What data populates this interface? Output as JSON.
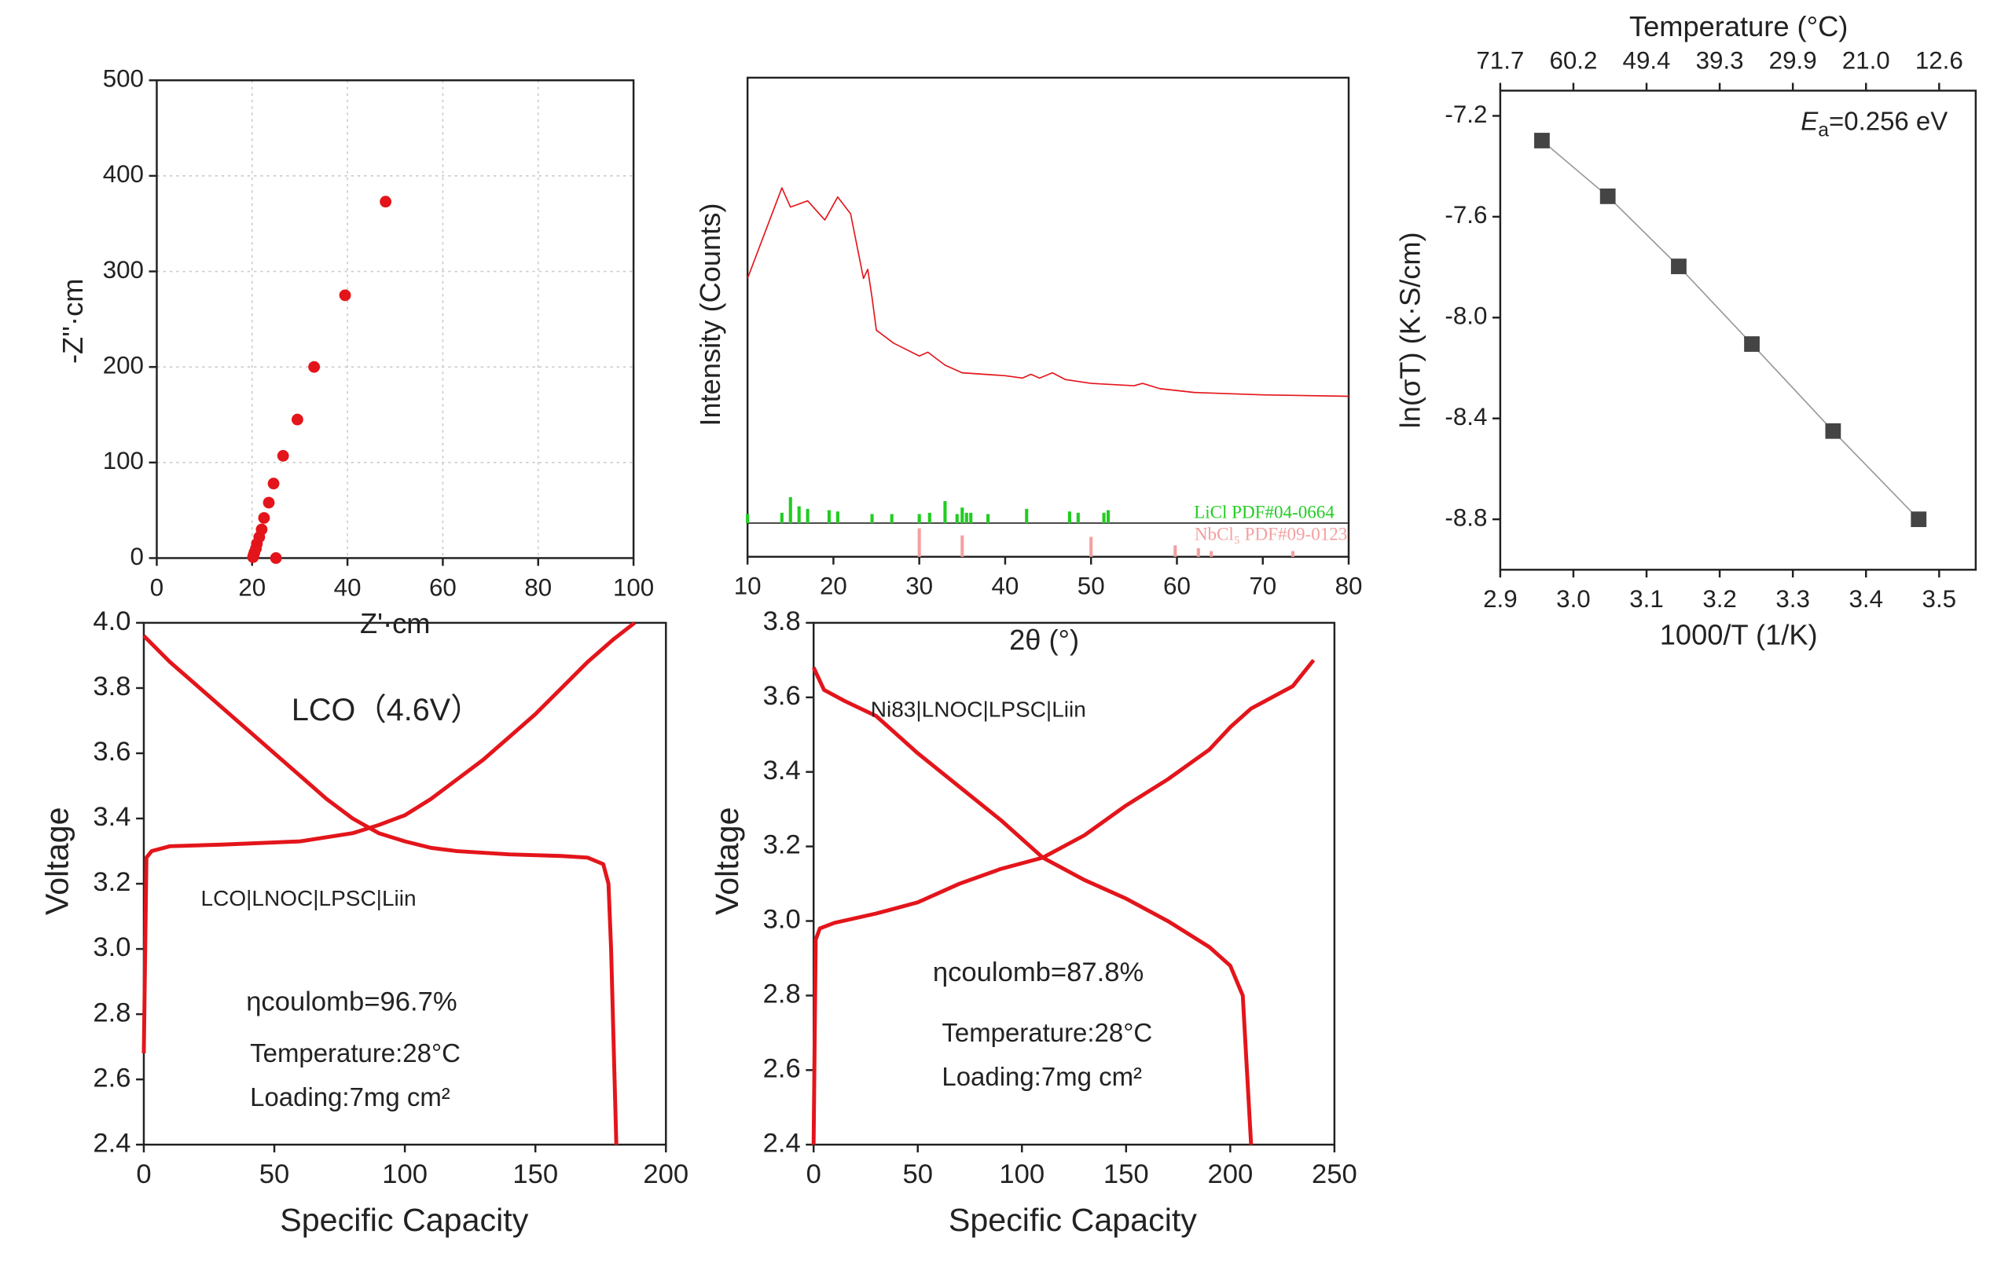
{
  "chart_data": [
    {
      "type": "scatter",
      "xlabel": "Z'·cm",
      "ylabel": "-Z''·cm",
      "xlim": [
        0,
        100
      ],
      "ylim": [
        0,
        500
      ],
      "xticks": [
        0,
        20,
        40,
        60,
        80,
        100
      ],
      "yticks": [
        0,
        100,
        200,
        300,
        400,
        500
      ],
      "grid": true,
      "series": [
        {
          "color": "#e3151b",
          "x": [
            48,
            39.5,
            33,
            29.5,
            26.5,
            24.5,
            23.5,
            22.5,
            22,
            21.5,
            21,
            20.8,
            20.5,
            20.3,
            20.2,
            25
          ],
          "values": [
            373,
            275,
            200,
            145,
            107,
            78,
            58,
            42,
            30,
            22,
            15,
            10,
            6,
            3,
            1,
            0
          ]
        }
      ]
    },
    {
      "type": "line",
      "xlabel": "2θ (°)",
      "ylabel": "Intensity (Counts)",
      "xlim": [
        10,
        80
      ],
      "ylim": [
        0,
        100
      ],
      "xticks": [
        10,
        20,
        30,
        40,
        50,
        60,
        70,
        80
      ],
      "grid": false,
      "series": [
        {
          "color": "#e3151b",
          "x": [
            10,
            14,
            15,
            17,
            19,
            20.5,
            22,
            23.5,
            24,
            24.5,
            25,
            27,
            30,
            31,
            33,
            35,
            40,
            42,
            43,
            44,
            45.5,
            47,
            50,
            55,
            56,
            58,
            62,
            70,
            80
          ],
          "values": [
            58.1,
            77.0,
            73.0,
            74.3,
            70.3,
            75.1,
            71.6,
            58.1,
            60.0,
            54.1,
            47.3,
            44.6,
            41.9,
            42.7,
            40.0,
            38.4,
            37.8,
            37.3,
            38.1,
            37.3,
            38.4,
            37.0,
            36.2,
            35.7,
            36.2,
            35.1,
            34.3,
            33.8,
            33.5
          ]
        }
      ],
      "references": [
        {
          "name": "LiCl PDF#04-0664",
          "color": "#22cc22",
          "x": [
            10,
            14,
            15,
            16,
            17,
            19.5,
            20.5,
            24.5,
            26.8,
            30,
            31.2,
            33,
            34.4,
            35,
            35.5,
            36,
            38,
            42.5,
            47.5,
            48.5,
            51.5,
            52
          ],
          "values": [
            35,
            40,
            100,
            65,
            55,
            50,
            45,
            35,
            35,
            35,
            40,
            85,
            35,
            60,
            40,
            40,
            35,
            55,
            45,
            40,
            40,
            50
          ]
        },
        {
          "name": "NbCl₅ PDF#09-0123",
          "color": "#f4a0a0",
          "x": [
            30,
            35,
            50,
            59.8,
            62.5,
            64,
            73.5
          ],
          "values": [
            100,
            75,
            70,
            40,
            30,
            20,
            20
          ]
        }
      ]
    },
    {
      "type": "line",
      "xlabel": "1000/T (1/K)",
      "ylabel": "ln(σT) (K·S/cm)",
      "x2label": "Temperature (°C)",
      "xlim": [
        2.9,
        3.55
      ],
      "ylim": [
        -9.0,
        -7.1
      ],
      "xticks": [
        2.9,
        {
          "value": 3,
          "label": "3.0"
        },
        3.1,
        3.2,
        3.3,
        3.4,
        3.5
      ],
      "x2ticks": [
        {
          "value": 2.9,
          "label": "71.7"
        },
        {
          "value": 3,
          "label": "60.2"
        },
        {
          "value": 3.1,
          "label": "49.4"
        },
        {
          "value": 3.2,
          "label": "39.3"
        },
        {
          "value": 3.3,
          "label": "29.9"
        },
        {
          "value": 3.4,
          "label": "21.0"
        },
        {
          "value": 3.5,
          "label": "12.6"
        }
      ],
      "yticks": [
        -7.2,
        -7.6,
        {
          "value": -8,
          "label": "-8.0"
        },
        -8.4,
        -8.8
      ],
      "grid": false,
      "annotation_parts": [
        "E",
        "a",
        "=0.256 eV"
      ],
      "series": [
        {
          "color": "#444444",
          "line_color": "#999999",
          "marker": "square",
          "x": [
            2.957,
            3.047,
            3.144,
            3.244,
            3.355,
            3.472
          ],
          "values": [
            -7.298,
            -7.519,
            -7.797,
            -8.105,
            -8.45,
            -8.8
          ]
        }
      ]
    },
    {
      "type": "line",
      "xlabel": "Specific Capacity",
      "ylabel": "Voltage",
      "xlim": [
        0,
        200
      ],
      "ylim": [
        2.4,
        4
      ],
      "xticks": [
        0,
        50,
        100,
        150,
        200
      ],
      "yticks": [
        2.4,
        2.6,
        2.8,
        {
          "value": 3,
          "label": "3.0"
        },
        3.2,
        3.4,
        3.6,
        3.8,
        {
          "value": 4,
          "label": "4.0"
        }
      ],
      "grid": false,
      "annotations": [
        "LCO（4.6V）",
        "LCO|LNOC|LPSC|Liin",
        "ηcoulomb=96.7%",
        "Temperature:28°C",
        "Loading:7mg cm²"
      ],
      "series": [
        {
          "color": "#e3151b",
          "x": [
            0,
            1,
            3,
            10,
            30,
            60,
            80,
            90,
            100,
            110,
            120,
            130,
            140,
            150,
            160,
            170,
            180,
            188
          ],
          "values": [
            2.68,
            3.28,
            3.3,
            3.315,
            3.32,
            3.33,
            3.355,
            3.38,
            3.41,
            3.46,
            3.52,
            3.58,
            3.65,
            3.72,
            3.8,
            3.88,
            3.95,
            4.0
          ]
        },
        {
          "color": "#e3151b",
          "x": [
            0,
            10,
            20,
            30,
            40,
            50,
            60,
            70,
            80,
            90,
            100,
            110,
            120,
            140,
            160,
            170,
            176,
            178,
            179,
            180,
            181
          ],
          "values": [
            3.96,
            3.88,
            3.81,
            3.74,
            3.67,
            3.6,
            3.53,
            3.46,
            3.4,
            3.355,
            3.33,
            3.31,
            3.3,
            3.29,
            3.285,
            3.28,
            3.26,
            3.2,
            3.0,
            2.7,
            2.4
          ]
        }
      ]
    },
    {
      "type": "line",
      "xlabel": "Specific Capacity",
      "ylabel": "Voltage",
      "xlim": [
        0,
        250
      ],
      "ylim": [
        2.4,
        3.8
      ],
      "xticks": [
        0,
        50,
        100,
        150,
        200,
        250
      ],
      "yticks": [
        2.4,
        2.6,
        2.8,
        {
          "value": 3,
          "label": "3.0"
        },
        3.2,
        3.4,
        3.6,
        3.8
      ],
      "grid": false,
      "annotations": [
        "Ni83|LNOC|LPSC|Liin",
        "ηcoulomb=87.8%",
        "Temperature:28°C",
        "Loading:7mg cm²"
      ],
      "series": [
        {
          "color": "#e3151b",
          "x": [
            0,
            1,
            3,
            10,
            30,
            50,
            70,
            90,
            110,
            130,
            150,
            170,
            190,
            200,
            210,
            220,
            230,
            240
          ],
          "values": [
            2.4,
            2.95,
            2.98,
            2.995,
            3.02,
            3.05,
            3.1,
            3.14,
            3.17,
            3.23,
            3.31,
            3.38,
            3.46,
            3.52,
            3.57,
            3.6,
            3.63,
            3.7
          ]
        },
        {
          "color": "#e3151b",
          "x": [
            0,
            5,
            15,
            30,
            50,
            70,
            90,
            110,
            130,
            150,
            170,
            190,
            200,
            206,
            208,
            210
          ],
          "values": [
            3.68,
            3.62,
            3.59,
            3.55,
            3.45,
            3.36,
            3.27,
            3.17,
            3.11,
            3.06,
            3.0,
            2.93,
            2.88,
            2.8,
            2.6,
            2.4
          ]
        }
      ]
    }
  ]
}
